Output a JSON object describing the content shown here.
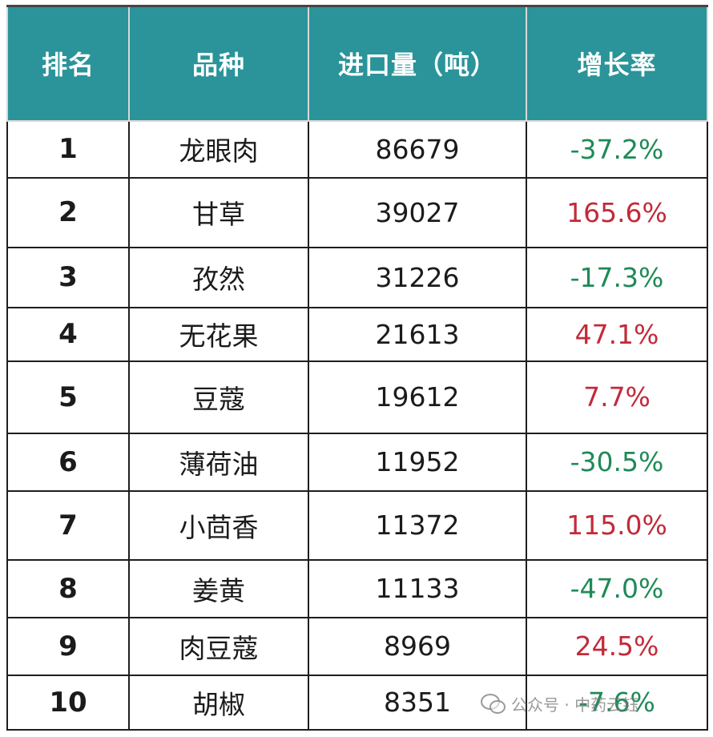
{
  "table": {
    "headers": [
      "排名",
      "品种",
      "进口量（吨）",
      "增长率"
    ],
    "rows": [
      {
        "rank": "1",
        "name": "龙眼肉",
        "qty": "86679",
        "rate": "-37.2%",
        "trend": "neg"
      },
      {
        "rank": "2",
        "name": "甘草",
        "qty": "39027",
        "rate": "165.6%",
        "trend": "pos"
      },
      {
        "rank": "3",
        "name": "孜然",
        "qty": "31226",
        "rate": "-17.3%",
        "trend": "neg"
      },
      {
        "rank": "4",
        "name": "无花果",
        "qty": "21613",
        "rate": "47.1%",
        "trend": "pos"
      },
      {
        "rank": "5",
        "name": "豆蔻",
        "qty": "19612",
        "rate": "7.7%",
        "trend": "pos"
      },
      {
        "rank": "6",
        "name": "薄荷油",
        "qty": "11952",
        "rate": "-30.5%",
        "trend": "neg"
      },
      {
        "rank": "7",
        "name": "小茴香",
        "qty": "11372",
        "rate": "115.0%",
        "trend": "pos"
      },
      {
        "rank": "8",
        "name": "姜黄",
        "qty": "11133",
        "rate": "-47.0%",
        "trend": "neg"
      },
      {
        "rank": "9",
        "name": "肉豆蔻",
        "qty": "8969",
        "rate": "24.5%",
        "trend": "pos"
      },
      {
        "rank": "10",
        "name": "胡椒",
        "qty": "8351",
        "rate": "-7.6%",
        "trend": "neg"
      }
    ]
  },
  "colors": {
    "header_bg": "#2a949a",
    "negative": "#1e8a57",
    "positive": "#c22a3a"
  },
  "watermark": {
    "text": "公众号 · 中药云钰",
    "icon": "wechat-icon"
  }
}
